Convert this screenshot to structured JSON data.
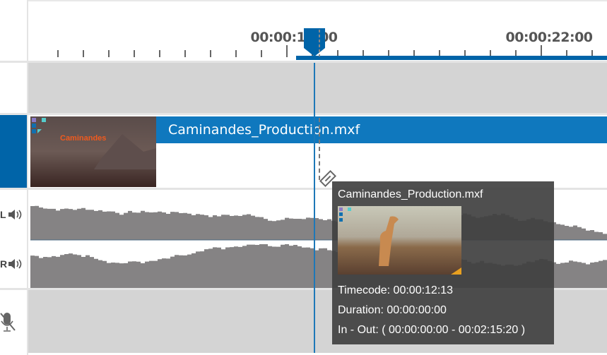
{
  "ruler": {
    "labels": [
      "00:00:18:00",
      "00:00:22:00"
    ]
  },
  "clip": {
    "name": "Caminandes_Production.mxf",
    "thumb_text": "Caminandes"
  },
  "audio": {
    "channels": [
      "L",
      "R"
    ]
  },
  "tooltip": {
    "title": "Caminandes_Production.mxf",
    "timecode": "Timecode: 00:00:12:13",
    "duration": "Duration: 00:00:00:00",
    "in_out": "In - Out: ( 00:00:00:00  -  00:02:15:20 )"
  },
  "colors": {
    "accent": "#0064a8",
    "clip": "#0f78be",
    "waveform": "#858384"
  },
  "icons": {
    "speaker": "speaker-icon",
    "mic": "mic-off-icon",
    "razor": "razor-icon"
  }
}
